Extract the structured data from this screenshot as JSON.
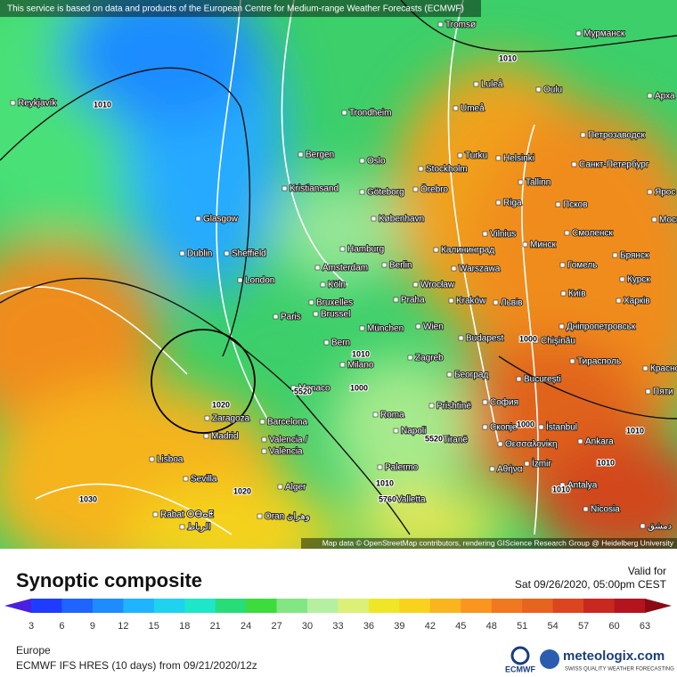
{
  "map": {
    "banner": "This service is based on data and products of the European Centre for Medium-range Weather Forecasts (ECMWF)",
    "attribution": "Map data © OpenStreetMap contributors, rendering GIScience Research Group @ Heidelberg University",
    "cities": [
      "Reykjavík",
      "Tromsø",
      "Мурманск",
      "Luleå",
      "Oulu",
      "Арха",
      "Trondheim",
      "Umeå",
      "Петрозаводск",
      "Bergen",
      "Oslo",
      "Turku",
      "Helsinki",
      "Санкт-Петербург",
      "Stockholm",
      "Kristiansand",
      "Göteborg",
      "Örebro",
      "Tallinn",
      "Ярос",
      "Glasgow",
      "Riga",
      "Псков",
      "København",
      "Vilnius",
      "Минск",
      "Смоленск",
      "Москва",
      "Dublin",
      "Sheffield",
      "Hamburg",
      "Калининград",
      "Брянск",
      "Amsterdam",
      "Berlin",
      "Warszawa",
      "Гомель",
      "London",
      "Köln",
      "Wrocław",
      "Київ",
      "Курск",
      "Bruxelles",
      "Brussel",
      "Praha",
      "Kraków",
      "Львів",
      "Харків",
      "Paris",
      "Дніпропетровськ",
      "München",
      "Wien",
      "Budapest",
      "Chișinău",
      "Bern",
      "Milano",
      "Zagreb",
      "Тирасполь",
      "Красно",
      "Monaco",
      "Београд",
      "București",
      "Пяти",
      "Zaragoza",
      "Roma",
      "Prishtinë",
      "София",
      "Madrid",
      "Barcelona",
      "Napoli",
      "Скопје",
      "İstanbul",
      "Ankara",
      "Valencia /",
      "València",
      "Tiranë",
      "Θεσσαλονίκη",
      "Lisboa",
      "Palermo",
      "Αθήνα",
      "İzmir",
      "Sevilla",
      "Alger",
      "Valletta",
      "Antalya",
      "Nicosia",
      "Rabat ⵔⴱⴰⵟ",
      "الرباط",
      "Oran وهران",
      "دمشق"
    ],
    "isobar_labels": [
      "1010",
      "1010",
      "1020",
      "5520",
      "1000",
      "1010",
      "1010",
      "1030",
      "1020",
      "1010",
      "5760",
      "5520",
      "1010",
      "1000",
      "1000",
      "1010"
    ]
  },
  "panel": {
    "title": "Synoptic composite",
    "valid_label": "Valid for",
    "valid_time": "Sat 09/26/2020, 05:00pm CEST",
    "region": "Europe",
    "model_run": "ECMWF IFS HRES (10 days) from 09/21/2020/12z",
    "ecmwf": "ECMWF",
    "brand": "meteologix.com",
    "tagline": "SWISS QUALITY WEATHER FORECASTING"
  },
  "colorbar": {
    "ticks": [
      3,
      6,
      9,
      12,
      15,
      18,
      21,
      24,
      27,
      30,
      33,
      36,
      39,
      42,
      45,
      48,
      51,
      54,
      57,
      60,
      63
    ],
    "colors": [
      "#4b1fe0",
      "#1e3cff",
      "#1e64ff",
      "#1e8cff",
      "#1eb4ff",
      "#1ed2f0",
      "#1ee6c8",
      "#28dc78",
      "#3cdc3c",
      "#82e682",
      "#b4f0a0",
      "#dcf078",
      "#f0e628",
      "#fad21e",
      "#fab41e",
      "#fa961e",
      "#f0781e",
      "#e6641e",
      "#dc461e",
      "#c8281e",
      "#b4141e",
      "#8c0a14"
    ]
  }
}
